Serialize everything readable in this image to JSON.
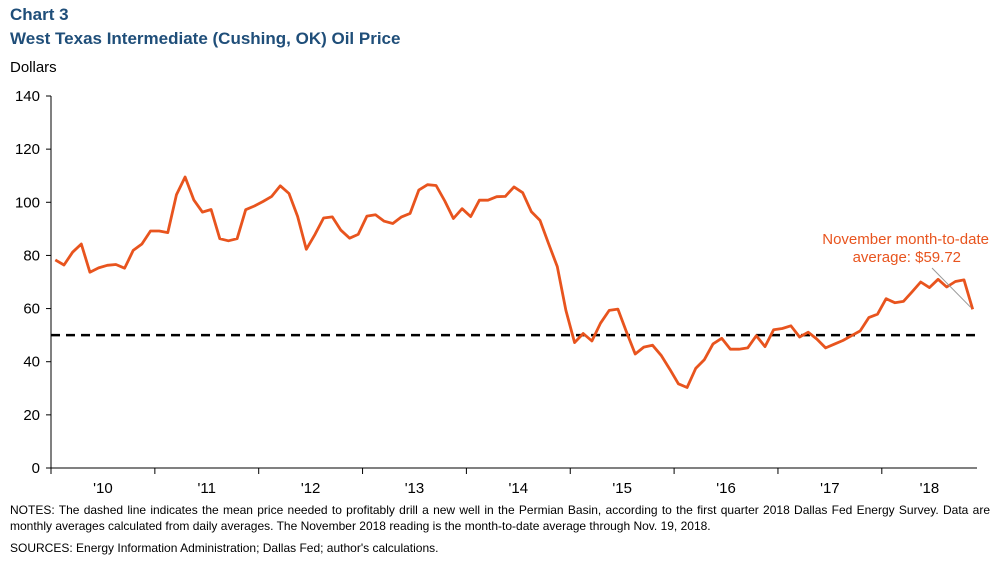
{
  "header": {
    "chart_number": "Chart 3",
    "title": "West Texas Intermediate (Cushing, OK) Oil Price"
  },
  "chart_data": {
    "type": "line",
    "title": "West Texas Intermediate (Cushing, OK) Oil Price",
    "ylabel": "Dollars",
    "xlabel": "",
    "ylim": [
      0,
      140
    ],
    "yticks": [
      0,
      20,
      40,
      60,
      80,
      100,
      120,
      140
    ],
    "x_start": "2010-01",
    "x_end": "2018-11",
    "xtick_labels": [
      "'10",
      "'11",
      "'12",
      "'13",
      "'14",
      "'15",
      "'16",
      "'17",
      "'18"
    ],
    "grid": false,
    "line_color": "#e8541e",
    "reference_line": {
      "value": 50,
      "style": "dashed",
      "color": "#000000"
    },
    "annotation": {
      "lines": [
        "November month-to-date",
        "average: $59.72"
      ],
      "color": "#e8541e"
    },
    "series": [
      {
        "values": [
          78.3,
          76.4,
          81.2,
          84.3,
          73.7,
          75.3,
          76.3,
          76.6,
          75.2,
          81.9,
          84.3,
          89.2,
          89.2,
          88.6,
          102.9,
          109.5,
          100.9,
          96.3,
          97.3,
          86.3,
          85.5,
          86.3,
          97.2,
          98.6,
          100.3,
          102.2,
          106.2,
          103.3,
          94.7,
          82.3,
          87.9,
          94.1,
          94.5,
          89.5,
          86.5,
          87.9,
          94.8,
          95.3,
          92.9,
          92.0,
          94.5,
          95.8,
          104.6,
          106.6,
          106.3,
          100.5,
          93.9,
          97.6,
          94.6,
          100.8,
          100.8,
          102.1,
          102.2,
          105.8,
          103.6,
          96.5,
          93.2,
          84.4,
          75.8,
          59.3,
          47.2,
          50.6,
          47.8,
          54.5,
          59.3,
          59.8,
          51.2,
          42.9,
          45.5,
          46.2,
          42.4,
          37.2,
          31.7,
          30.3,
          37.5,
          40.8,
          46.7,
          48.8,
          44.7,
          44.7,
          45.2,
          49.8,
          45.7,
          52.0,
          52.5,
          53.5,
          49.3,
          51.1,
          48.5,
          45.2,
          46.6,
          48.0,
          49.8,
          51.6,
          56.6,
          57.9,
          63.7,
          62.2,
          62.7,
          66.3,
          70.0,
          67.9,
          71.0,
          68.1,
          70.2,
          70.8,
          59.72
        ]
      }
    ]
  },
  "footer": {
    "notes": "NOTES: The dashed line indicates the mean price needed to profitably drill a new well in the Permian Basin, according to the first quarter 2018 Dallas Fed Energy Survey. Data are monthly averages calculated from daily averages. The November 2018 reading is the month-to-date average through Nov. 19, 2018.",
    "sources": "SOURCES: Energy Information Administration; Dallas Fed; author's calculations."
  }
}
